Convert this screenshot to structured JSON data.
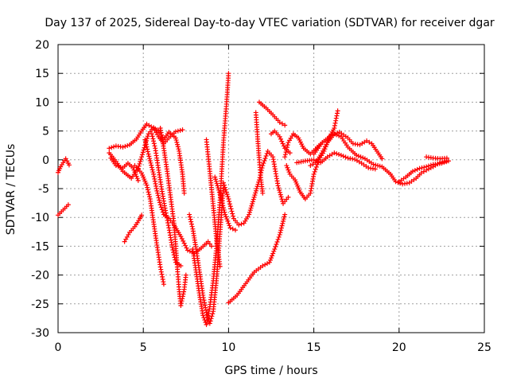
{
  "chart_data": {
    "type": "scatter",
    "title": "Day 137 of 2025, Sidereal Day-to-day VTEC variation (SDTVAR) for receiver dgar",
    "xlabel": "GPS time / hours",
    "ylabel": "SDTVAR / TECUs",
    "xlim": [
      0,
      25
    ],
    "ylim": [
      -30,
      20
    ],
    "xticks": [
      0,
      5,
      10,
      15,
      20,
      25
    ],
    "yticks": [
      -30,
      -25,
      -20,
      -15,
      -10,
      -5,
      0,
      5,
      10,
      15,
      20
    ],
    "grid": true,
    "marker": "+",
    "color": "#ff0000",
    "series": [
      {
        "points": [
          [
            0.0,
            -2.2
          ],
          [
            0.15,
            -1.2
          ],
          [
            0.3,
            -0.5
          ],
          [
            0.45,
            0.2
          ],
          [
            0.6,
            -0.6
          ],
          [
            0.65,
            -0.9
          ]
        ]
      },
      {
        "points": [
          [
            0.0,
            -9.6
          ],
          [
            0.2,
            -9.0
          ],
          [
            0.4,
            -8.4
          ],
          [
            0.6,
            -7.8
          ]
        ]
      },
      {
        "points": [
          [
            3.0,
            2.0
          ],
          [
            3.4,
            2.4
          ],
          [
            3.8,
            2.2
          ],
          [
            4.2,
            2.6
          ],
          [
            4.6,
            3.6
          ],
          [
            4.9,
            5.0
          ],
          [
            5.2,
            6.2
          ],
          [
            5.6,
            5.5
          ],
          [
            5.9,
            4.0
          ],
          [
            6.2,
            2.8
          ],
          [
            6.5,
            3.8
          ],
          [
            6.9,
            4.9
          ],
          [
            7.3,
            5.2
          ]
        ]
      },
      {
        "points": [
          [
            3.0,
            1.2
          ],
          [
            3.4,
            -0.3
          ],
          [
            3.8,
            -2.0
          ],
          [
            4.3,
            -3.2
          ],
          [
            4.7,
            -1.5
          ],
          [
            4.9,
            0.5
          ],
          [
            5.1,
            2.5
          ],
          [
            5.3,
            4.5
          ],
          [
            5.6,
            5.6
          ],
          [
            5.9,
            5.0
          ],
          [
            6.2,
            3.5
          ],
          [
            6.5,
            4.8
          ],
          [
            6.9,
            3.8
          ],
          [
            7.1,
            1.5
          ],
          [
            7.3,
            -2.5
          ],
          [
            7.4,
            -5.8
          ]
        ]
      },
      {
        "points": [
          [
            3.1,
            0.3
          ],
          [
            3.4,
            -1.0
          ],
          [
            3.8,
            -1.4
          ],
          [
            4.1,
            -0.6
          ],
          [
            4.4,
            -1.4
          ],
          [
            4.7,
            -3.6
          ]
        ]
      },
      {
        "points": [
          [
            4.5,
            -1.0
          ],
          [
            4.9,
            -2.3
          ],
          [
            5.2,
            -4.4
          ],
          [
            5.4,
            -6.8
          ],
          [
            5.6,
            -10.8
          ],
          [
            5.8,
            -14.8
          ],
          [
            6.0,
            -18.6
          ],
          [
            6.2,
            -21.6
          ]
        ]
      },
      {
        "points": [
          [
            5.1,
            3.5
          ],
          [
            5.3,
            1.0
          ],
          [
            5.6,
            -2.5
          ],
          [
            5.8,
            -5.4
          ],
          [
            6.0,
            -7.8
          ],
          [
            6.2,
            -9.5
          ],
          [
            6.5,
            -10.2
          ],
          [
            6.8,
            -11.3
          ],
          [
            7.2,
            -13.3
          ],
          [
            7.6,
            -15.7
          ],
          [
            8.0,
            -16.2
          ],
          [
            8.4,
            -15.3
          ],
          [
            8.8,
            -14.2
          ],
          [
            9.0,
            -15.0
          ]
        ]
      },
      {
        "points": [
          [
            5.5,
            4.5
          ],
          [
            5.7,
            2.0
          ],
          [
            5.9,
            -1.8
          ],
          [
            6.1,
            -5.5
          ],
          [
            6.3,
            -8.8
          ],
          [
            6.5,
            -11.8
          ],
          [
            6.7,
            -15.2
          ],
          [
            6.9,
            -17.8
          ],
          [
            7.2,
            -18.4
          ]
        ]
      },
      {
        "points": [
          [
            6.0,
            5.5
          ],
          [
            6.2,
            2.0
          ],
          [
            6.4,
            -2.0
          ],
          [
            6.6,
            -6.5
          ],
          [
            6.8,
            -11.0
          ],
          [
            6.9,
            -15.0
          ],
          [
            7.0,
            -19.0
          ],
          [
            7.1,
            -22.5
          ],
          [
            7.2,
            -25.3
          ],
          [
            7.4,
            -22.5
          ],
          [
            7.5,
            -20.0
          ]
        ]
      },
      {
        "points": [
          [
            7.7,
            -9.5
          ],
          [
            7.9,
            -12.0
          ],
          [
            8.1,
            -15.5
          ],
          [
            8.3,
            -19.5
          ],
          [
            8.5,
            -23.5
          ],
          [
            8.7,
            -26.5
          ],
          [
            8.9,
            -28.4
          ],
          [
            9.1,
            -26.3
          ],
          [
            9.3,
            -20.6
          ],
          [
            9.5,
            -12.5
          ],
          [
            9.7,
            -5.0
          ]
        ]
      },
      {
        "points": [
          [
            7.9,
            -15.5
          ],
          [
            8.1,
            -19.5
          ],
          [
            8.3,
            -23.5
          ],
          [
            8.5,
            -27.0
          ],
          [
            8.7,
            -28.6
          ],
          [
            8.9,
            -25.5
          ],
          [
            9.1,
            -21.0
          ],
          [
            9.3,
            -15.0
          ],
          [
            9.5,
            -7.0
          ],
          [
            9.7,
            3.0
          ],
          [
            9.9,
            10.5
          ],
          [
            10.0,
            15.0
          ]
        ]
      },
      {
        "points": [
          [
            8.7,
            3.5
          ],
          [
            8.9,
            -2.0
          ],
          [
            9.1,
            -8.0
          ],
          [
            9.3,
            -14.0
          ],
          [
            9.5,
            -18.5
          ]
        ]
      },
      {
        "points": [
          [
            9.2,
            -3.0
          ],
          [
            9.5,
            -6.0
          ],
          [
            9.8,
            -9.5
          ],
          [
            10.1,
            -11.8
          ],
          [
            10.4,
            -12.2
          ]
        ]
      },
      {
        "points": [
          [
            9.7,
            -4.0
          ],
          [
            10.0,
            -6.8
          ],
          [
            10.3,
            -10.2
          ],
          [
            10.6,
            -11.3
          ],
          [
            10.9,
            -11.0
          ],
          [
            11.2,
            -9.5
          ],
          [
            11.5,
            -6.5
          ],
          [
            11.8,
            -3.5
          ],
          [
            12.0,
            -1.0
          ],
          [
            12.3,
            1.5
          ],
          [
            12.6,
            0.5
          ],
          [
            12.9,
            -4.5
          ],
          [
            13.2,
            -7.6
          ],
          [
            13.5,
            -6.5
          ]
        ]
      },
      {
        "points": [
          [
            10.0,
            -24.8
          ],
          [
            10.5,
            -23.5
          ],
          [
            11.0,
            -21.5
          ],
          [
            11.5,
            -19.5
          ],
          [
            12.0,
            -18.4
          ],
          [
            12.4,
            -17.8
          ],
          [
            12.7,
            -15.5
          ],
          [
            13.0,
            -13.0
          ],
          [
            13.3,
            -9.5
          ]
        ]
      },
      {
        "points": [
          [
            11.6,
            8.2
          ],
          [
            11.7,
            4.0
          ],
          [
            11.8,
            0.0
          ],
          [
            11.9,
            -3.5
          ],
          [
            12.0,
            -5.8
          ]
        ]
      },
      {
        "points": [
          [
            11.8,
            10.0
          ],
          [
            12.2,
            9.0
          ],
          [
            12.6,
            7.8
          ],
          [
            13.0,
            6.5
          ],
          [
            13.3,
            6.0
          ]
        ]
      },
      {
        "points": [
          [
            12.5,
            4.5
          ],
          [
            12.7,
            5.0
          ],
          [
            13.0,
            4.0
          ],
          [
            13.3,
            2.0
          ],
          [
            13.6,
            1.2
          ]
        ]
      },
      {
        "points": [
          [
            13.3,
            0.5
          ],
          [
            13.5,
            3.0
          ],
          [
            13.8,
            4.5
          ],
          [
            14.1,
            3.8
          ],
          [
            14.4,
            2.0
          ],
          [
            14.8,
            1.0
          ],
          [
            15.2,
            2.2
          ],
          [
            15.5,
            3.0
          ]
        ]
      },
      {
        "points": [
          [
            13.4,
            -1.0
          ],
          [
            13.6,
            -2.5
          ],
          [
            13.9,
            -3.5
          ],
          [
            14.2,
            -5.6
          ],
          [
            14.5,
            -6.8
          ],
          [
            14.8,
            -5.8
          ],
          [
            15.0,
            -2.5
          ],
          [
            15.3,
            0.0
          ],
          [
            15.6,
            1.5
          ],
          [
            15.9,
            3.8
          ],
          [
            16.2,
            5.5
          ],
          [
            16.4,
            8.5
          ]
        ]
      },
      {
        "points": [
          [
            14.0,
            -0.5
          ],
          [
            14.5,
            -0.2
          ],
          [
            15.0,
            0.0
          ],
          [
            15.4,
            -0.5
          ],
          [
            15.8,
            0.5
          ],
          [
            16.2,
            1.2
          ],
          [
            16.6,
            0.8
          ],
          [
            17.0,
            0.3
          ],
          [
            17.4,
            0.1
          ],
          [
            17.8,
            -0.6
          ],
          [
            18.2,
            -1.4
          ],
          [
            18.6,
            -1.6
          ]
        ]
      },
      {
        "points": [
          [
            15.0,
            1.0
          ],
          [
            15.5,
            3.0
          ],
          [
            16.0,
            4.2
          ],
          [
            16.5,
            4.8
          ],
          [
            17.0,
            3.8
          ],
          [
            17.3,
            2.8
          ],
          [
            17.7,
            2.6
          ],
          [
            18.1,
            3.3
          ],
          [
            18.4,
            2.8
          ],
          [
            18.7,
            1.5
          ],
          [
            19.0,
            0.2
          ]
        ]
      },
      {
        "points": [
          [
            14.8,
            -1.0
          ],
          [
            15.1,
            -0.5
          ],
          [
            15.4,
            0.8
          ],
          [
            15.8,
            3.0
          ],
          [
            16.2,
            4.5
          ],
          [
            16.6,
            4.0
          ],
          [
            17.0,
            2.2
          ],
          [
            17.5,
            0.8
          ],
          [
            18.0,
            0.2
          ],
          [
            18.5,
            -0.8
          ],
          [
            19.0,
            -1.2
          ],
          [
            19.5,
            -2.5
          ],
          [
            19.8,
            -3.8
          ],
          [
            20.2,
            -4.2
          ],
          [
            20.6,
            -4.0
          ],
          [
            21.0,
            -3.2
          ],
          [
            21.3,
            -2.3
          ],
          [
            21.6,
            -1.8
          ],
          [
            22.0,
            -1.2
          ],
          [
            22.4,
            -0.5
          ],
          [
            22.8,
            -0.2
          ]
        ]
      },
      {
        "points": [
          [
            20.0,
            -3.8
          ],
          [
            20.4,
            -3.0
          ],
          [
            20.8,
            -2.0
          ],
          [
            21.2,
            -1.5
          ],
          [
            21.6,
            -1.2
          ],
          [
            22.0,
            -0.8
          ],
          [
            22.5,
            -0.6
          ],
          [
            22.9,
            -0.2
          ]
        ]
      },
      {
        "points": [
          [
            21.6,
            0.5
          ],
          [
            22.0,
            0.3
          ],
          [
            22.4,
            0.2
          ],
          [
            22.8,
            0.3
          ]
        ]
      },
      {
        "points": [
          [
            3.9,
            -14.2
          ],
          [
            4.2,
            -12.6
          ],
          [
            4.5,
            -11.6
          ],
          [
            4.8,
            -10.2
          ],
          [
            4.9,
            -9.6
          ]
        ]
      }
    ]
  }
}
